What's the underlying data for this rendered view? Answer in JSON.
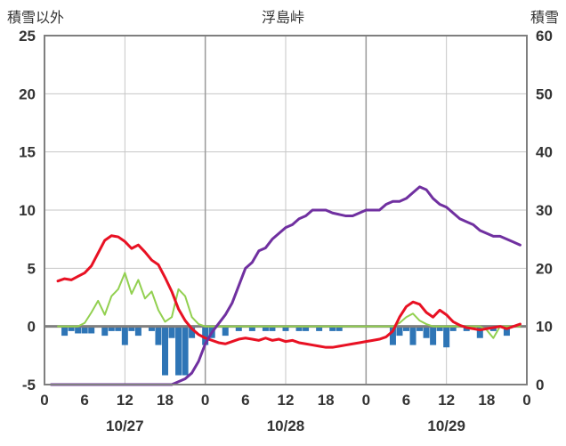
{
  "chart_data": {
    "type": "line",
    "title": "浮島峠",
    "left_axis": {
      "label": "積雪以外",
      "min": -5,
      "max": 25,
      "ticks": [
        25,
        20,
        15,
        10,
        5,
        0,
        -5
      ]
    },
    "right_axis": {
      "label": "積雪",
      "min": 0,
      "max": 60,
      "ticks": [
        60,
        50,
        40,
        30,
        20,
        10,
        0
      ]
    },
    "x_axis": {
      "hours_total": 72,
      "tick_interval": 6,
      "tick_labels": [
        "0",
        "6",
        "12",
        "18",
        "0",
        "6",
        "12",
        "18",
        "0",
        "6",
        "12",
        "18",
        "0"
      ],
      "gridline_hours": [
        12,
        24,
        36,
        48,
        60
      ],
      "day_labels": [
        {
          "label": "10/27",
          "hour": 12
        },
        {
          "label": "10/28",
          "hour": 36
        },
        {
          "label": "10/29",
          "hour": 60
        }
      ]
    },
    "colors": {
      "grid": "#c6c6c6",
      "grid_major": "#9a9a9a",
      "zero_line": "#808080",
      "border": "#7f7f7f",
      "text": "#333333"
    },
    "series": {
      "red_line": {
        "axis": "left",
        "color": "#e81123",
        "width": 3,
        "points": [
          [
            2,
            3.9
          ],
          [
            3,
            4.1
          ],
          [
            4,
            4.0
          ],
          [
            5,
            4.3
          ],
          [
            6,
            4.6
          ],
          [
            7,
            5.2
          ],
          [
            8,
            6.3
          ],
          [
            9,
            7.4
          ],
          [
            10,
            7.8
          ],
          [
            11,
            7.7
          ],
          [
            12,
            7.3
          ],
          [
            13,
            6.7
          ],
          [
            14,
            7.0
          ],
          [
            15,
            6.4
          ],
          [
            16,
            5.7
          ],
          [
            17,
            5.3
          ],
          [
            18,
            4.2
          ],
          [
            19,
            3.0
          ],
          [
            20,
            1.5
          ],
          [
            21,
            0.5
          ],
          [
            22,
            -0.2
          ],
          [
            23,
            -0.7
          ],
          [
            24,
            -1.0
          ],
          [
            25,
            -1.2
          ],
          [
            26,
            -1.4
          ],
          [
            27,
            -1.5
          ],
          [
            28,
            -1.3
          ],
          [
            29,
            -1.1
          ],
          [
            30,
            -1.0
          ],
          [
            31,
            -1.1
          ],
          [
            32,
            -1.2
          ],
          [
            33,
            -1.0
          ],
          [
            34,
            -1.2
          ],
          [
            35,
            -1.1
          ],
          [
            36,
            -1.3
          ],
          [
            37,
            -1.2
          ],
          [
            38,
            -1.4
          ],
          [
            39,
            -1.5
          ],
          [
            40,
            -1.6
          ],
          [
            41,
            -1.7
          ],
          [
            42,
            -1.8
          ],
          [
            43,
            -1.8
          ],
          [
            44,
            -1.7
          ],
          [
            45,
            -1.6
          ],
          [
            46,
            -1.5
          ],
          [
            47,
            -1.4
          ],
          [
            48,
            -1.3
          ],
          [
            49,
            -1.2
          ],
          [
            50,
            -1.1
          ],
          [
            51,
            -0.9
          ],
          [
            52,
            -0.4
          ],
          [
            53,
            0.8
          ],
          [
            54,
            1.7
          ],
          [
            55,
            2.1
          ],
          [
            56,
            1.9
          ],
          [
            57,
            1.2
          ],
          [
            58,
            0.8
          ],
          [
            59,
            1.4
          ],
          [
            60,
            1.0
          ],
          [
            61,
            0.4
          ],
          [
            62,
            0.1
          ],
          [
            63,
            -0.1
          ],
          [
            64,
            -0.2
          ],
          [
            65,
            -0.3
          ],
          [
            66,
            -0.2
          ],
          [
            67,
            -0.1
          ],
          [
            68,
            0.0
          ],
          [
            69,
            -0.2
          ],
          [
            70,
            0.0
          ],
          [
            71,
            0.2
          ]
        ]
      },
      "green_line": {
        "axis": "left",
        "color": "#92d050",
        "width": 2,
        "points": [
          [
            2,
            0
          ],
          [
            5,
            0
          ],
          [
            6,
            0.3
          ],
          [
            7,
            1.2
          ],
          [
            8,
            2.2
          ],
          [
            9,
            1.0
          ],
          [
            10,
            2.6
          ],
          [
            11,
            3.2
          ],
          [
            12,
            4.6
          ],
          [
            13,
            2.8
          ],
          [
            14,
            4.0
          ],
          [
            15,
            2.4
          ],
          [
            16,
            3.0
          ],
          [
            17,
            1.4
          ],
          [
            18,
            0.4
          ],
          [
            19,
            0.8
          ],
          [
            20,
            3.2
          ],
          [
            21,
            2.6
          ],
          [
            22,
            0.8
          ],
          [
            23,
            0.2
          ],
          [
            24,
            0
          ],
          [
            52,
            0
          ],
          [
            53,
            0.3
          ],
          [
            54,
            0.8
          ],
          [
            55,
            1.1
          ],
          [
            56,
            0.5
          ],
          [
            57,
            0.2
          ],
          [
            58,
            0
          ],
          [
            65,
            0
          ],
          [
            66,
            -0.3
          ],
          [
            67,
            -1.0
          ],
          [
            68,
            0
          ],
          [
            71,
            0
          ]
        ]
      },
      "purple_line": {
        "axis": "right",
        "color": "#7030a0",
        "width": 3,
        "points": [
          [
            1,
            0
          ],
          [
            19,
            0
          ],
          [
            20,
            0.5
          ],
          [
            21,
            1
          ],
          [
            22,
            2
          ],
          [
            23,
            4
          ],
          [
            24,
            7
          ],
          [
            25,
            9
          ],
          [
            26,
            10.5
          ],
          [
            27,
            12
          ],
          [
            28,
            14
          ],
          [
            29,
            17
          ],
          [
            30,
            20
          ],
          [
            31,
            21
          ],
          [
            32,
            23
          ],
          [
            33,
            23.5
          ],
          [
            34,
            25
          ],
          [
            35,
            26
          ],
          [
            36,
            27
          ],
          [
            37,
            27.5
          ],
          [
            38,
            28.5
          ],
          [
            39,
            29
          ],
          [
            40,
            30
          ],
          [
            42,
            30
          ],
          [
            43,
            29.5
          ],
          [
            45,
            29
          ],
          [
            46,
            29
          ],
          [
            47,
            29.5
          ],
          [
            48,
            30
          ],
          [
            50,
            30
          ],
          [
            51,
            31
          ],
          [
            52,
            31.5
          ],
          [
            53,
            31.5
          ],
          [
            54,
            32
          ],
          [
            55,
            33
          ],
          [
            56,
            34
          ],
          [
            57,
            33.5
          ],
          [
            58,
            32
          ],
          [
            59,
            31
          ],
          [
            60,
            30.5
          ],
          [
            61,
            29.5
          ],
          [
            62,
            28.5
          ],
          [
            63,
            28
          ],
          [
            64,
            27.5
          ],
          [
            65,
            26.5
          ],
          [
            66,
            26
          ],
          [
            67,
            25.5
          ],
          [
            68,
            25.5
          ],
          [
            69,
            25
          ],
          [
            70,
            24.5
          ],
          [
            71,
            24
          ]
        ]
      },
      "blue_bars": {
        "axis": "left",
        "color": "#2e75b6",
        "points": [
          [
            3,
            -0.8
          ],
          [
            4,
            -0.4
          ],
          [
            5,
            -0.6
          ],
          [
            6,
            -0.6
          ],
          [
            7,
            -0.6
          ],
          [
            9,
            -0.8
          ],
          [
            10,
            -0.4
          ],
          [
            11,
            -0.4
          ],
          [
            12,
            -1.6
          ],
          [
            13,
            -0.4
          ],
          [
            14,
            -0.8
          ],
          [
            16,
            -0.4
          ],
          [
            17,
            -1.6
          ],
          [
            18,
            -4.2
          ],
          [
            19,
            -1.0
          ],
          [
            20,
            -4.2
          ],
          [
            21,
            -4.2
          ],
          [
            22,
            -1.0
          ],
          [
            24,
            -1.6
          ],
          [
            25,
            -1.0
          ],
          [
            27,
            -0.8
          ],
          [
            29,
            -0.4
          ],
          [
            31,
            -0.4
          ],
          [
            33,
            -0.4
          ],
          [
            34,
            -0.4
          ],
          [
            36,
            -0.4
          ],
          [
            38,
            -0.4
          ],
          [
            39,
            -0.4
          ],
          [
            41,
            -0.4
          ],
          [
            43,
            -0.4
          ],
          [
            44,
            -0.4
          ],
          [
            52,
            -1.6
          ],
          [
            53,
            -0.8
          ],
          [
            54,
            -0.4
          ],
          [
            55,
            -1.6
          ],
          [
            56,
            -0.4
          ],
          [
            57,
            -1.0
          ],
          [
            58,
            -1.6
          ],
          [
            59,
            -0.4
          ],
          [
            60,
            -1.8
          ],
          [
            61,
            -0.4
          ],
          [
            63,
            -0.4
          ],
          [
            65,
            -1.0
          ],
          [
            67,
            -0.4
          ],
          [
            69,
            -0.8
          ]
        ]
      }
    }
  }
}
